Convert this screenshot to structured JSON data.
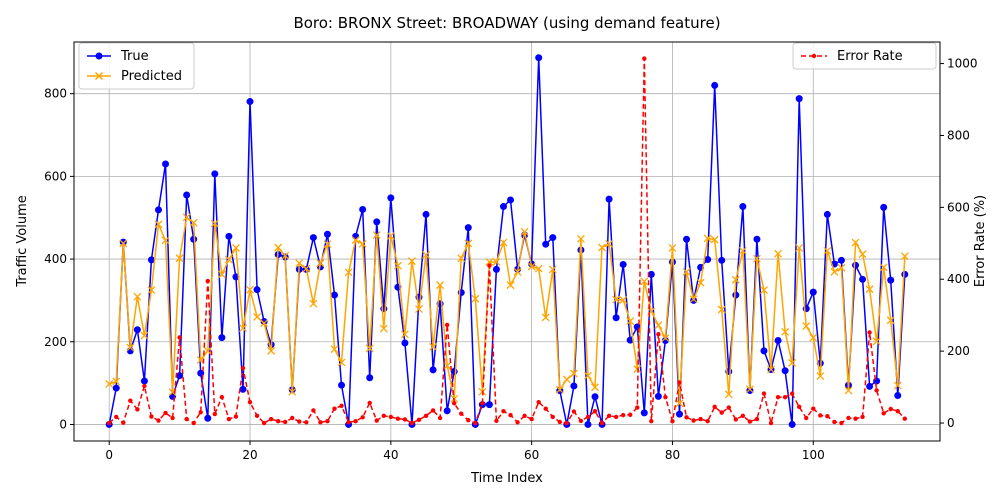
{
  "chart_data": {
    "type": "line",
    "title": "Boro: BRONX Street: BROADWAY (using demand feature)",
    "xlabel": "Time Index",
    "ylabel": "Traffic Volume",
    "y2label": "Error Rate (%)",
    "xlim": [
      -5,
      118
    ],
    "ylim": [
      -40,
      925
    ],
    "y2lim": [
      -50,
      1060
    ],
    "xticks": [
      0,
      20,
      40,
      60,
      80,
      100
    ],
    "yticks": [
      0,
      200,
      400,
      600,
      800
    ],
    "y2ticks": [
      0,
      200,
      400,
      600,
      800,
      1000
    ],
    "grid": true,
    "legend_left_position": "upper-left",
    "legend_right_position": "upper-right",
    "x": [
      0,
      1,
      2,
      3,
      4,
      5,
      6,
      7,
      8,
      9,
      10,
      11,
      12,
      13,
      14,
      15,
      16,
      17,
      18,
      19,
      20,
      21,
      22,
      23,
      24,
      25,
      26,
      27,
      28,
      29,
      30,
      31,
      32,
      33,
      34,
      35,
      36,
      37,
      38,
      39,
      40,
      41,
      42,
      43,
      44,
      45,
      46,
      47,
      48,
      49,
      50,
      51,
      52,
      53,
      54,
      55,
      56,
      57,
      58,
      59,
      60,
      61,
      62,
      63,
      64,
      65,
      66,
      67,
      68,
      69,
      70,
      71,
      72,
      73,
      74,
      75,
      76,
      77,
      78,
      79,
      80,
      81,
      82,
      83,
      84,
      85,
      86,
      87,
      88,
      89,
      90,
      91,
      92,
      93,
      94,
      95,
      96,
      97,
      98,
      99,
      100,
      101,
      102,
      103,
      104,
      105,
      106,
      107,
      108,
      109,
      110,
      111,
      112,
      113
    ],
    "series": [
      {
        "name": "True",
        "color": "#0000ff",
        "marker": "circle",
        "axis": "left",
        "values": [
          0,
          88,
          441,
          178,
          229,
          105,
          398,
          519,
          630,
          68,
          118,
          555,
          448,
          124,
          15,
          606,
          210,
          455,
          357,
          85,
          781,
          326,
          249,
          193,
          411,
          405,
          84,
          375,
          375,
          452,
          381,
          460,
          313,
          95,
          0,
          455,
          520,
          113,
          490,
          280,
          548,
          332,
          197,
          0,
          308,
          508,
          132,
          292,
          33,
          128,
          319,
          476,
          0,
          48,
          48,
          375,
          527,
          543,
          375,
          458,
          388,
          887,
          436,
          452,
          82,
          0,
          93,
          422,
          0,
          67,
          0,
          545,
          258,
          387,
          204,
          236,
          28,
          363,
          68,
          203,
          393,
          25,
          448,
          300,
          380,
          399,
          820,
          397,
          128,
          313,
          527,
          82,
          448,
          178,
          133,
          203,
          130,
          0,
          788,
          280,
          320,
          148,
          508,
          388,
          397,
          95,
          385,
          351,
          92,
          105,
          525,
          349,
          70,
          363
        ]
      },
      {
        "name": "Predicted",
        "color": "#ffa500",
        "marker": "x",
        "axis": "left",
        "values": [
          98,
          104,
          438,
          186,
          309,
          215,
          325,
          484,
          445,
          78,
          402,
          501,
          488,
          156,
          178,
          486,
          363,
          399,
          427,
          233,
          326,
          260,
          245,
          178,
          428,
          408,
          79,
          390,
          377,
          292,
          390,
          436,
          182,
          150,
          368,
          446,
          437,
          184,
          458,
          232,
          456,
          384,
          218,
          395,
          279,
          410,
          188,
          337,
          142,
          62,
          402,
          438,
          304,
          79,
          393,
          393,
          440,
          337,
          369,
          466,
          382,
          377,
          259,
          375,
          84,
          109,
          123,
          449,
          118,
          90,
          428,
          437,
          302,
          301,
          250,
          134,
          346,
          274,
          240,
          209,
          427,
          51,
          369,
          303,
          343,
          450,
          447,
          278,
          73,
          350,
          420,
          85,
          401,
          325,
          133,
          413,
          224,
          149,
          427,
          238,
          210,
          117,
          420,
          369,
          379,
          82,
          440,
          412,
          327,
          201,
          380,
          252,
          94,
          407
        ]
      }
    ],
    "series_right": [
      {
        "name": "Error Rate",
        "color": "#ff0000",
        "style": "dashed",
        "marker": "dot",
        "axis": "right",
        "values": [
          0,
          17,
          1,
          62,
          38,
          103,
          18,
          7,
          28,
          14,
          238,
          11,
          0,
          30,
          395,
          25,
          72,
          11,
          18,
          153,
          58,
          20,
          0,
          11,
          5,
          3,
          14,
          4,
          2,
          35,
          2,
          5,
          40,
          48,
          2,
          5,
          16,
          56,
          7,
          20,
          17,
          12,
          10,
          0,
          9,
          20,
          35,
          14,
          273,
          55,
          26,
          8,
          0,
          55,
          438,
          6,
          33,
          22,
          2,
          20,
          11,
          58,
          40,
          17,
          3,
          0,
          32,
          6,
          17,
          33,
          0,
          20,
          17,
          22,
          23,
          43,
          1014,
          5,
          247,
          72,
          5,
          113,
          16,
          7,
          11,
          5,
          45,
          29,
          43,
          10,
          20,
          4,
          11,
          82,
          0,
          72,
          72,
          82,
          45,
          14,
          40,
          21,
          19,
          3,
          0,
          14,
          12,
          17,
          252,
          91,
          27,
          39,
          33,
          12
        ]
      }
    ]
  }
}
